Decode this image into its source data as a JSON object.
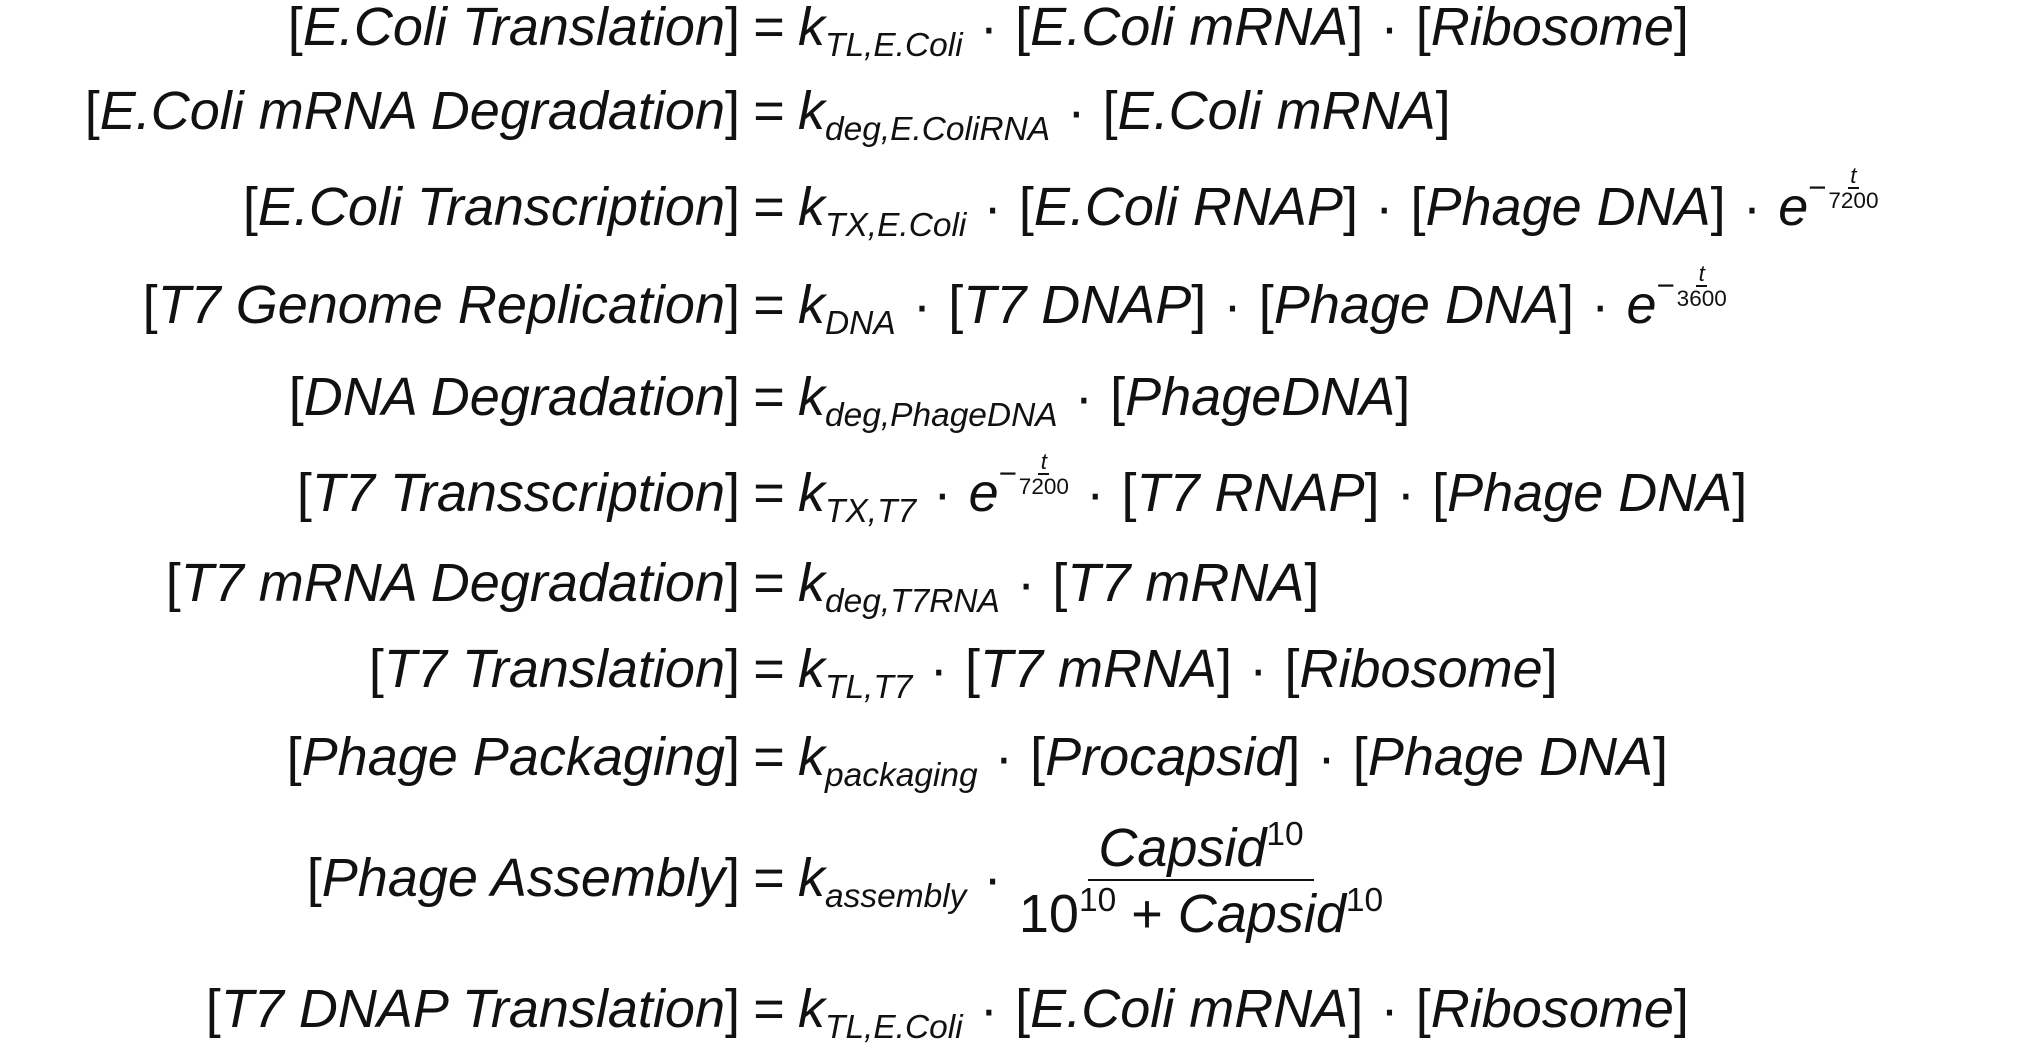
{
  "equations": [
    {
      "lhs": "E.Coli Translation",
      "rate_main": "k",
      "rate_sub": "TL,E.Coli",
      "terms": [
        "E.Coli mRNA",
        "Ribosome"
      ]
    },
    {
      "lhs": "E.Coli mRNA Degradation",
      "rate_main": "k",
      "rate_sub": "deg,E.ColiRNA",
      "terms": [
        "E.Coli mRNA"
      ]
    },
    {
      "lhs": "E.Coli Transcription",
      "rate_main": "k",
      "rate_sub": "TX,E.Coli",
      "terms": [
        "E.Coli RNAP",
        "Phage DNA"
      ],
      "exp_minus": "−",
      "exp_num": "t",
      "exp_den": "7200"
    },
    {
      "lhs": "T7 Genome Replication",
      "rate_main": "k",
      "rate_sub": "DNA",
      "terms": [
        "T7 DNAP",
        "Phage DNA"
      ],
      "exp_minus": "−",
      "exp_num": "t",
      "exp_den": "3600"
    },
    {
      "lhs": "DNA Degradation",
      "rate_main": "k",
      "rate_sub": "deg,PhageDNA",
      "terms": [
        "PhageDNA"
      ]
    },
    {
      "lhs": "T7 Transscription",
      "rate_main": "k",
      "rate_sub": "TX,T7",
      "exp_minus": "−",
      "exp_num": "t",
      "exp_den": "7200",
      "terms": [
        "T7 RNAP",
        "Phage DNA"
      ]
    },
    {
      "lhs": "T7 mRNA Degradation",
      "rate_main": "k",
      "rate_sub": "deg,T7RNA",
      "terms": [
        "T7 mRNA"
      ]
    },
    {
      "lhs": "T7 Translation",
      "rate_main": "k",
      "rate_sub": "TL,T7",
      "terms": [
        "T7 mRNA",
        "Ribosome"
      ]
    },
    {
      "lhs": "Phage Packaging",
      "rate_main": "k",
      "rate_sub": "packaging",
      "terms": [
        "Procapsid",
        "Phage DNA"
      ]
    },
    {
      "lhs": "Phage Assembly",
      "rate_main": "k",
      "rate_sub": "assembly",
      "frac_num_base": "Capsid",
      "frac_num_pow": "10",
      "frac_den_base": "10",
      "frac_den_pow": "10",
      "frac_den_plus": "+",
      "frac_den_term": "Capsid",
      "frac_den_term_pow": "10"
    },
    {
      "lhs": "T7 DNAP Translation",
      "rate_main": "k",
      "rate_sub": "TL,E.Coli",
      "terms": [
        "E.Coli mRNA",
        "Ribosome"
      ]
    }
  ],
  "symbols": {
    "equals": "=",
    "dot": "·",
    "lbracket": "[",
    "rbracket": "]",
    "e": "e"
  }
}
